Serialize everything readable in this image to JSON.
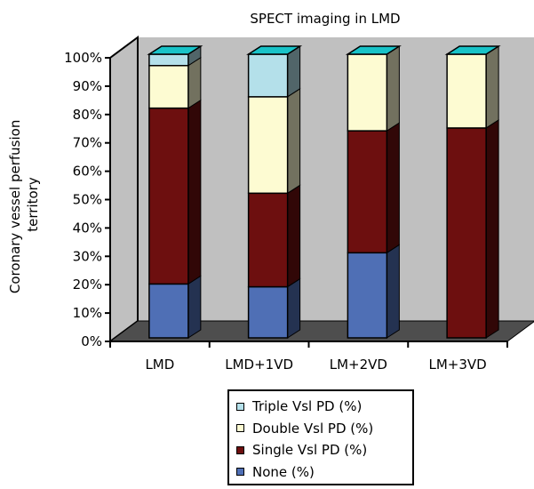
{
  "chart_data": {
    "type": "bar",
    "stacked": true,
    "three_d": true,
    "title": "SPECT imaging in LMD",
    "xlabel": "",
    "ylabel": "Coronary vessel perfusion territory",
    "ylim": [
      0,
      100
    ],
    "y_ticks": [
      "0%",
      "10%",
      "20%",
      "30%",
      "40%",
      "50%",
      "60%",
      "70%",
      "80%",
      "90%",
      "100%"
    ],
    "categories": [
      "LMD",
      "LMD+1VD",
      "LM+2VD",
      "LM+3VD"
    ],
    "series": [
      {
        "name": "None (%)",
        "color": "#4f6fb5",
        "values": [
          19,
          18,
          30,
          0
        ]
      },
      {
        "name": "Single Vsl PD (%)",
        "color": "#6d0f0f",
        "values": [
          62,
          33,
          43,
          74
        ]
      },
      {
        "name": "Double Vsl PD (%)",
        "color": "#fdfbd2",
        "values": [
          15,
          34,
          27,
          26
        ]
      },
      {
        "name": "Triple Vsl PD (%)",
        "color": "#b4e0ea",
        "values": [
          4,
          15,
          0,
          0
        ]
      }
    ],
    "grid": false,
    "legend_position": "bottom",
    "legend_order": [
      "Triple Vsl PD (%)",
      "Double Vsl PD (%)",
      "Single Vsl PD (%)",
      "None (%)"
    ],
    "colors": {
      "top_face": "#19c3c8",
      "back_wall": "#c0c0c0",
      "floor": "#4e4e4e"
    }
  }
}
